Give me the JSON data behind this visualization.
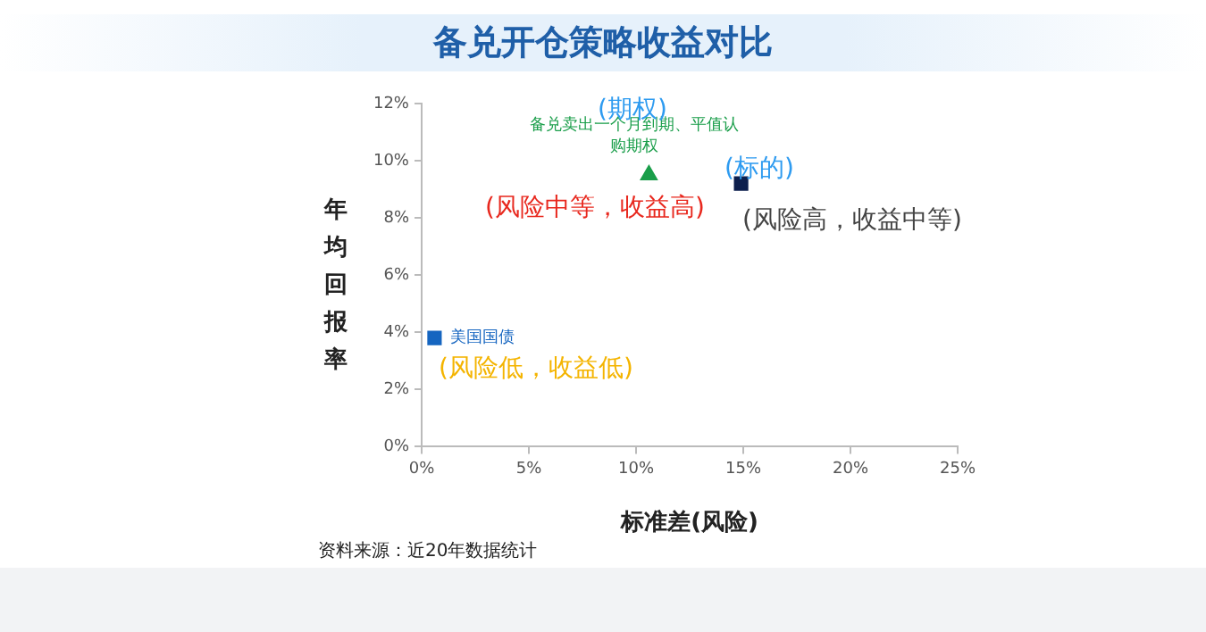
{
  "chart_data": {
    "type": "scatter",
    "title": "备兑开仓策略收益对比",
    "xlabel": "标准差(风险)",
    "ylabel": "年均回报率",
    "xlim": [
      0,
      25
    ],
    "xticks": [
      {
        "value": 0,
        "label": "0%"
      },
      {
        "value": 5,
        "label": "5%"
      },
      {
        "value": 10,
        "label": "10%"
      },
      {
        "value": 15,
        "label": "15%"
      },
      {
        "value": 20,
        "label": "20%"
      },
      {
        "value": 25,
        "label": "25%"
      }
    ],
    "ylim": [
      0,
      12
    ],
    "yticks": [
      {
        "value": 0,
        "label": "0%"
      },
      {
        "value": 2,
        "label": "2%"
      },
      {
        "value": 4,
        "label": "4%"
      },
      {
        "value": 6,
        "label": "6%"
      },
      {
        "value": 8,
        "label": "8%"
      },
      {
        "value": 10,
        "label": "10%"
      },
      {
        "value": 12,
        "label": "12%"
      }
    ],
    "grid": false,
    "legend": false,
    "series": [
      {
        "name": "美国国债",
        "color": "#1565c0",
        "marker": "square",
        "x": [
          0.6
        ],
        "values": [
          3.8
        ]
      },
      {
        "name": "备兑卖出一个月到期、平值认购期权",
        "color": "#1a9e4a",
        "marker": "triangle",
        "x": [
          10.6
        ],
        "values": [
          9.5
        ]
      },
      {
        "color": "#0d1f4d",
        "marker": "square",
        "x": [
          14.9
        ],
        "values": [
          9.2
        ]
      }
    ],
    "annotations": [
      "(期权)",
      "(风险中等，收益高)",
      "(标的)",
      "(风险高，收益中等)",
      "(风险低，收益低)",
      "资料来源：近20年数据统计"
    ]
  }
}
